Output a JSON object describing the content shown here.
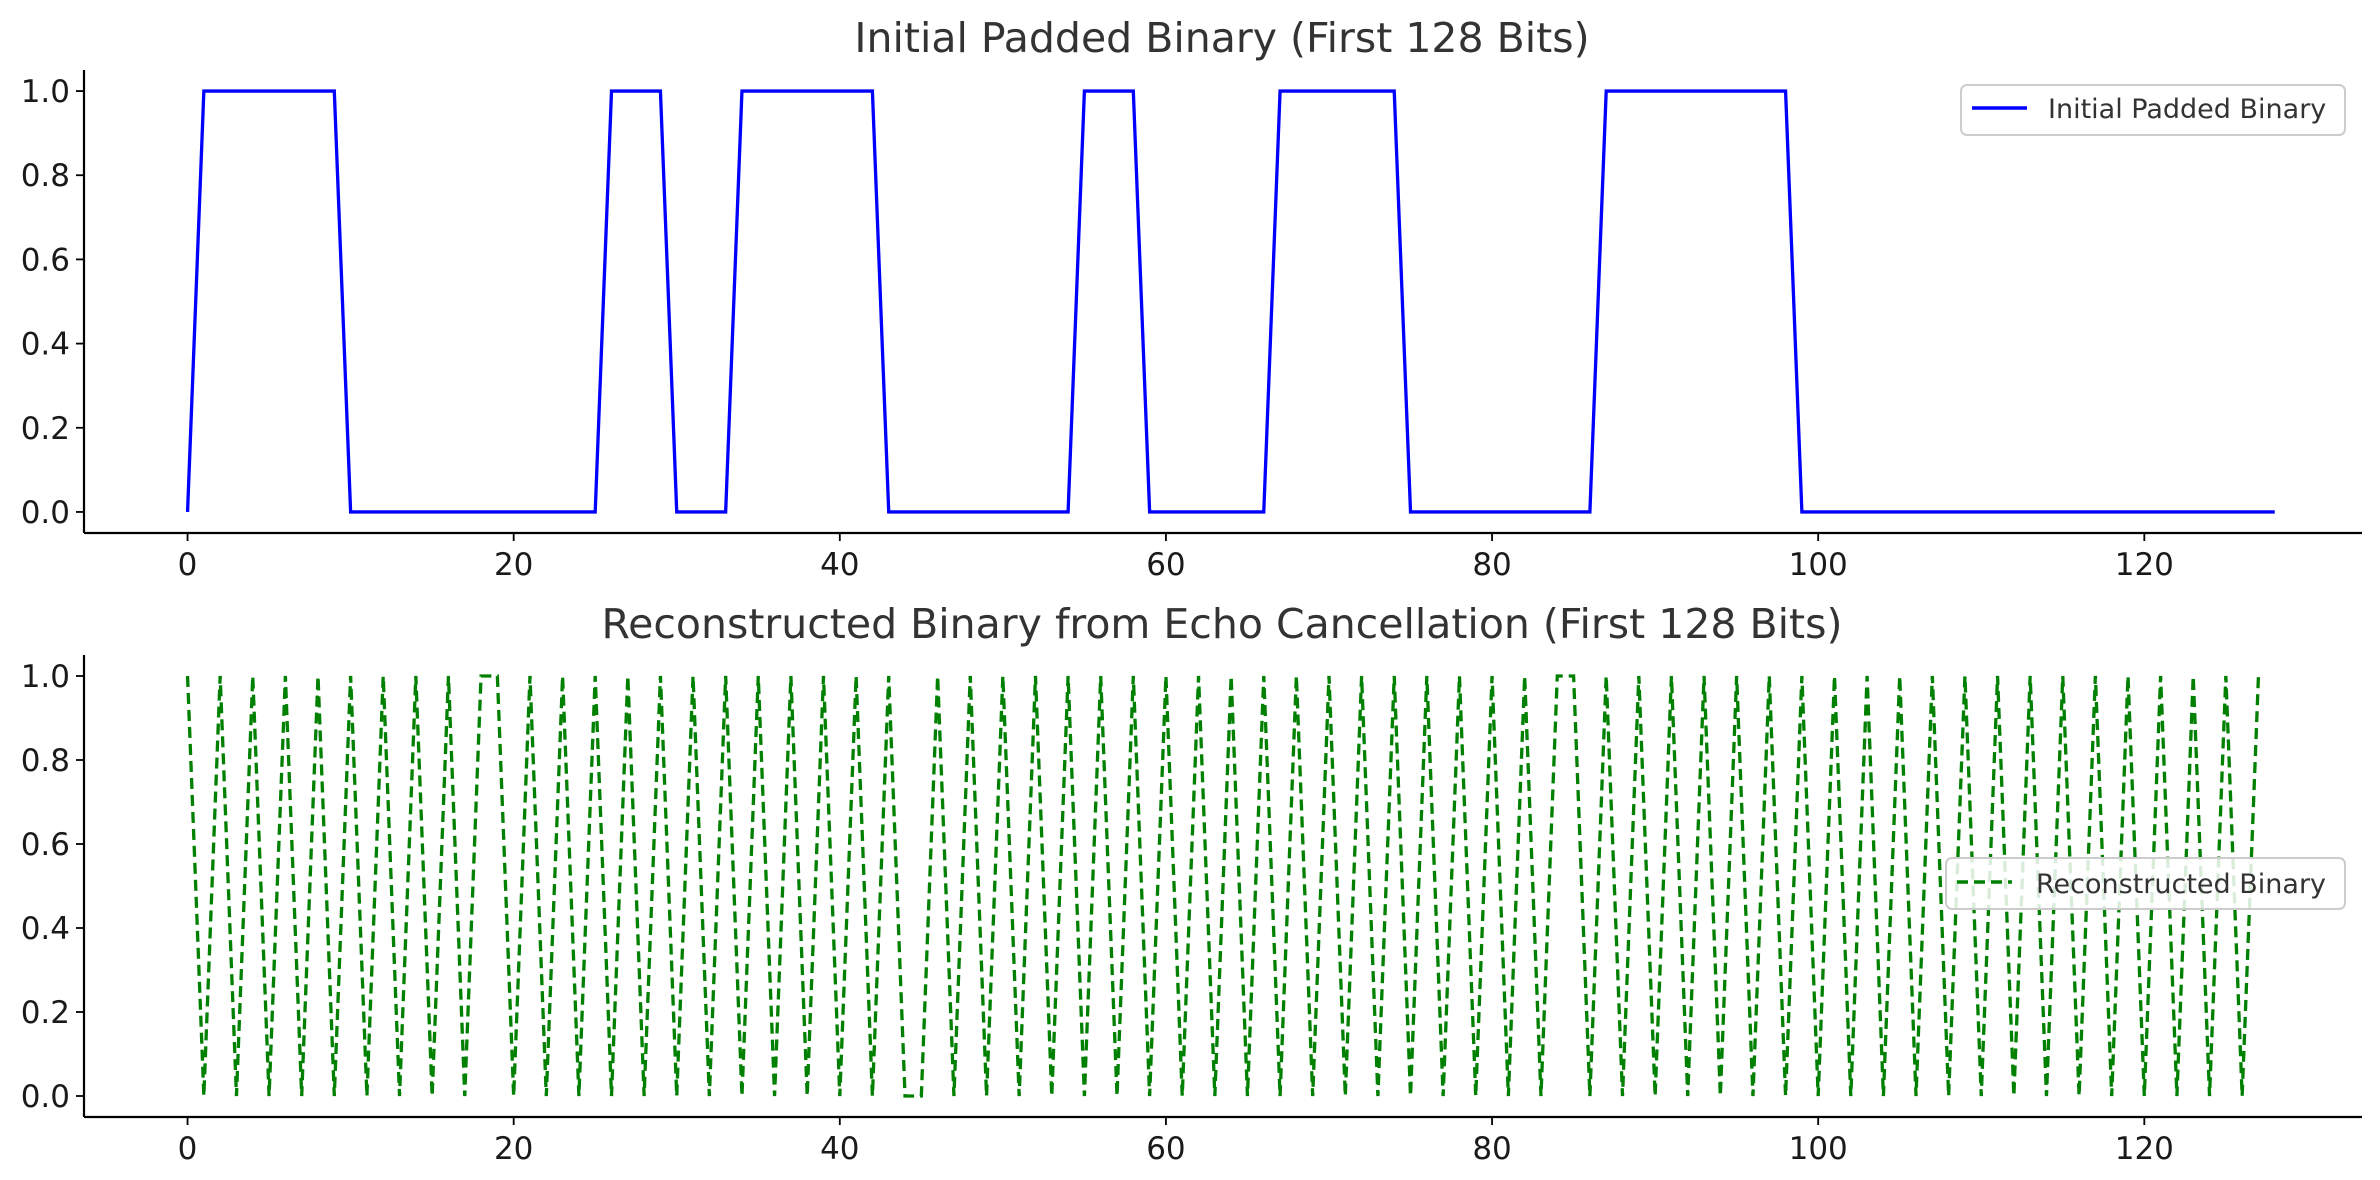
{
  "chart_data": [
    {
      "type": "line",
      "title": "Initial Padded Binary (First 128 Bits)",
      "xlabel": "",
      "ylabel": "",
      "xlim": [
        -6.35,
        133.35
      ],
      "ylim": [
        -0.05,
        1.05
      ],
      "xticks": [
        "0",
        "20",
        "40",
        "60",
        "80",
        "100",
        "120"
      ],
      "yticks": [
        "0.0",
        "0.2",
        "0.4",
        "0.6",
        "0.8",
        "1.0"
      ],
      "grid": false,
      "legend_position": "upper right",
      "series": [
        {
          "name": "Initial Padded Binary",
          "color": "#0000ff",
          "linestyle": "solid",
          "x_start": 0,
          "values": [
            0,
            1,
            1,
            1,
            1,
            1,
            1,
            1,
            1,
            1,
            0,
            0,
            0,
            0,
            0,
            0,
            0,
            0,
            0,
            0,
            0,
            0,
            0,
            0,
            0,
            0,
            1,
            1,
            1,
            1,
            0,
            0,
            0,
            0,
            1,
            1,
            1,
            1,
            1,
            1,
            1,
            1,
            1,
            0,
            0,
            0,
            0,
            0,
            0,
            0,
            0,
            0,
            0,
            0,
            0,
            1,
            1,
            1,
            1,
            0,
            0,
            0,
            0,
            0,
            0,
            0,
            0,
            1,
            1,
            1,
            1,
            1,
            1,
            1,
            1,
            0,
            0,
            0,
            0,
            0,
            0,
            0,
            0,
            0,
            0,
            0,
            0,
            1,
            1,
            1,
            1,
            1,
            1,
            1,
            1,
            1,
            1,
            1,
            1,
            0,
            0,
            0,
            0,
            0,
            0,
            0,
            0,
            0,
            0,
            0,
            0,
            0,
            0,
            0,
            0,
            0,
            0,
            0,
            0,
            0,
            0,
            0,
            0,
            0,
            0,
            0,
            0,
            0,
            0
          ]
        }
      ]
    },
    {
      "type": "line",
      "title": "Reconstructed Binary from Echo Cancellation (First 128 Bits)",
      "xlabel": "",
      "ylabel": "",
      "xlim": [
        -6.35,
        133.35
      ],
      "ylim": [
        -0.05,
        1.05
      ],
      "xticks": [
        "0",
        "20",
        "40",
        "60",
        "80",
        "100",
        "120"
      ],
      "yticks": [
        "0.0",
        "0.2",
        "0.4",
        "0.6",
        "0.8",
        "1.0"
      ],
      "grid": false,
      "legend_position": "center right",
      "series": [
        {
          "name": "Reconstructed Binary",
          "color": "#008000",
          "linestyle": "dashed",
          "x_start": 0,
          "values": [
            1,
            0,
            1,
            0,
            1,
            0,
            1,
            0,
            1,
            0,
            1,
            0,
            1,
            0,
            1,
            0,
            1,
            0,
            1,
            1,
            0,
            1,
            0,
            1,
            0,
            1,
            0,
            1,
            0,
            1,
            0,
            1,
            0,
            1,
            0,
            1,
            0,
            1,
            0,
            1,
            0,
            1,
            0,
            1,
            0,
            0,
            1,
            0,
            1,
            0,
            1,
            0,
            1,
            0,
            1,
            0,
            1,
            0,
            1,
            0,
            1,
            0,
            1,
            0,
            1,
            0,
            1,
            0,
            1,
            0,
            1,
            0,
            1,
            0,
            1,
            0,
            1,
            0,
            1,
            0,
            1,
            0,
            1,
            0,
            1,
            1,
            0,
            1,
            0,
            1,
            0,
            1,
            0,
            1,
            0,
            1,
            0,
            1,
            0,
            1,
            0,
            1,
            0,
            1,
            0,
            1,
            0,
            1,
            0,
            1,
            0,
            1,
            0,
            1,
            0,
            1,
            0,
            1,
            0,
            1,
            0,
            1,
            0,
            1,
            0,
            1,
            0,
            1
          ]
        }
      ]
    }
  ]
}
